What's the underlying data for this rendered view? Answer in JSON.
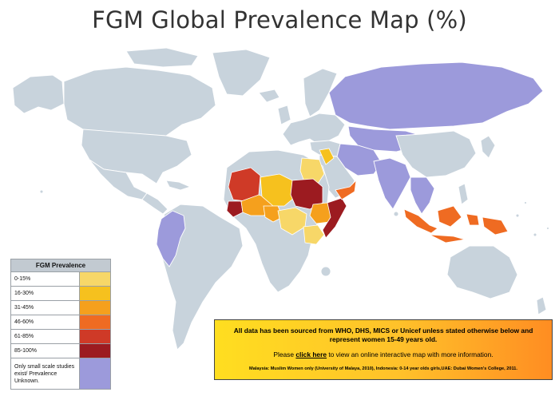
{
  "title": "FGM Global Prevalence Map (%)",
  "legend": {
    "title": "FGM Prevalence",
    "items": [
      {
        "label": "0-15%",
        "color": "#f7d768"
      },
      {
        "label": "16-30%",
        "color": "#f6c11e"
      },
      {
        "label": "31-45%",
        "color": "#f5a01d"
      },
      {
        "label": "46-60%",
        "color": "#ef6b22"
      },
      {
        "label": "61-85%",
        "color": "#cf3a27"
      },
      {
        "label": "85-100%",
        "color": "#9c1b20"
      },
      {
        "label": "Only small scale studies exist/ Prevalence Unknown.",
        "color": "#9c9adb"
      }
    ]
  },
  "info": {
    "line1": "All data has been sourced from WHO, DHS, MICS or Unicef unless stated otherwise below and represent women 15-49 years old.",
    "line2_before": "Please ",
    "link": "click here",
    "line2_after": " to view an online interactive map with more information.",
    "note": "Malaysia: Muslim Women only (University of Malaya, 2010), Indonesia: 0-14 year olds girls,UAE: Dubai Women's College, 2011."
  }
}
